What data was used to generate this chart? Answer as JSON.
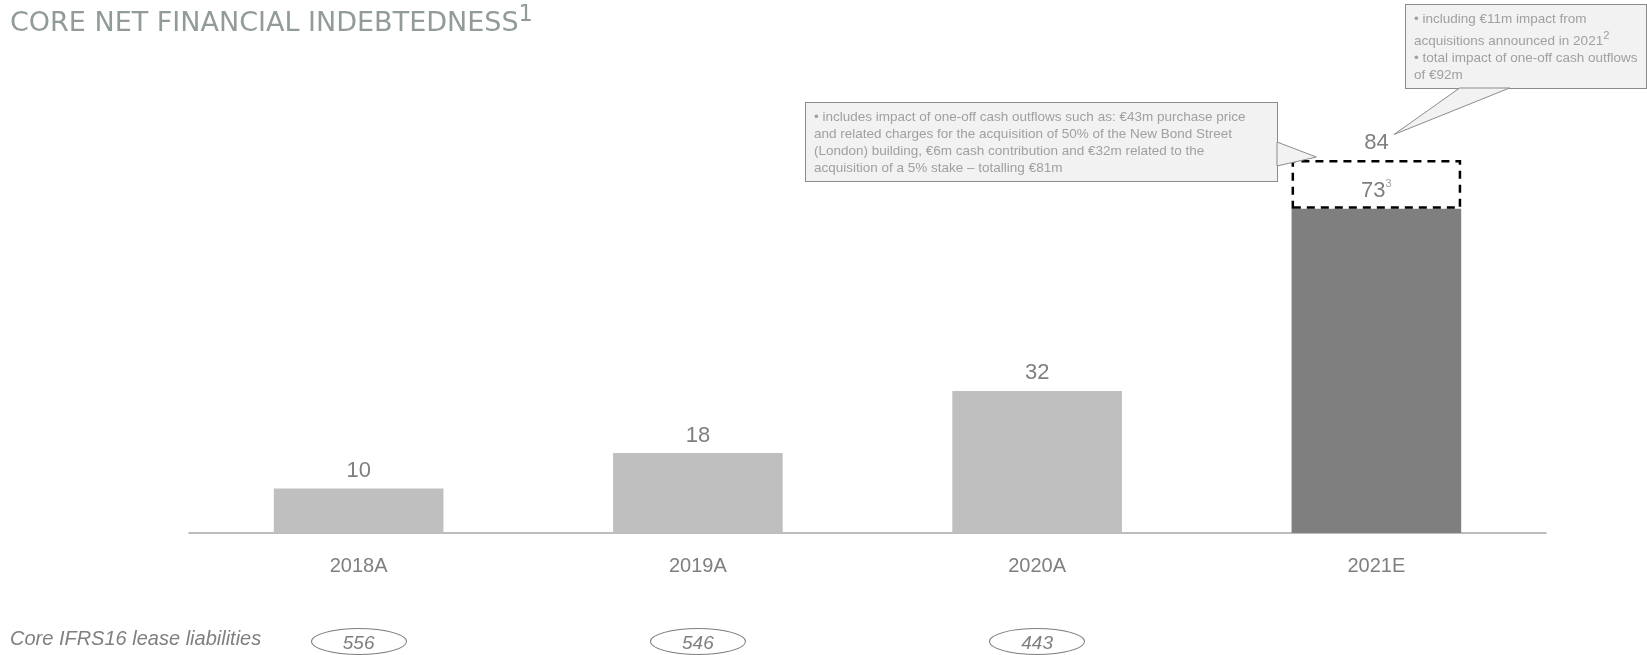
{
  "chart_data": {
    "type": "bar",
    "title": "CORE NET FINANCIAL INDEBTEDNESS$^{1}$",
    "categories": [
      "2018A",
      "2019A",
      "2020A",
      "2021E"
    ],
    "stacked": true,
    "series": [
      {
        "colors": [
          "#bfbfbf",
          "#bfbfbf",
          "#bfbfbf",
          "#7f7f7f"
        ],
        "values": [
          10,
          18,
          32,
          73
        ],
        "value_labels": [
          "10",
          "18",
          "32",
          "73$^{3}$"
        ]
      },
      {
        "color": "#000000",
        "line_style": "dashed",
        "values": [
          null,
          null,
          null,
          11
        ]
      }
    ],
    "totals": [
      null,
      null,
      null,
      "84"
    ],
    "annotations": [
      "• includes impact of one-off cash outflows such as: €43m purchase price and related charges for the acquisition of 50% of the New Bond Street (London) building, €6m cash contribution and €32m related to the acquisition of a 5% stake – totalling €81m",
      "• including €11m impact from acquisitions announced in 2021$^{2}$\n• total impact of one-off cash outflows of €92m",
      "Core IFRS16 lease liabilities",
      "556",
      "546",
      "443"
    ]
  }
}
